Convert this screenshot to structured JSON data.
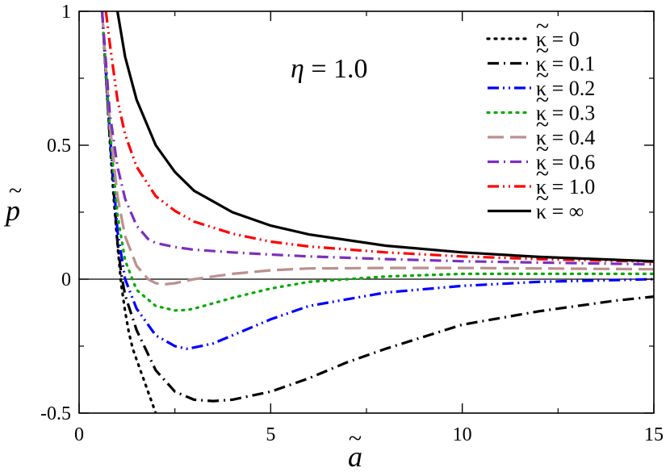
{
  "chart_data": {
    "type": "line",
    "title": "",
    "xlabel": "a",
    "ylabel": "p",
    "xlim": [
      0,
      15
    ],
    "ylim": [
      -0.5,
      1
    ],
    "xticks": [
      0,
      5,
      10,
      15
    ],
    "xtick_labels": [
      "0",
      "5",
      "10",
      "15"
    ],
    "yticks": [
      -0.5,
      0,
      0.5,
      1
    ],
    "ytick_labels": [
      "-0.5",
      "0",
      "0.5",
      "1"
    ],
    "annotation": {
      "symbol": "η",
      "text": " = 1.0"
    },
    "legend_position": "top-right",
    "series": [
      {
        "name": "κ = 0",
        "color": "#000000",
        "dash": "dot",
        "x": [
          0.6,
          0.7,
          0.8,
          0.9,
          1.0,
          1.1,
          1.2,
          1.3,
          1.4,
          1.5,
          1.6,
          1.7,
          1.8,
          1.9,
          2.0,
          2.1
        ],
        "y": [
          1.0,
          0.76,
          0.52,
          0.31,
          0.13,
          -0.02,
          -0.12,
          -0.2,
          -0.26,
          -0.3,
          -0.34,
          -0.38,
          -0.42,
          -0.46,
          -0.5,
          -0.53
        ]
      },
      {
        "name": "κ = 0.1",
        "color": "#000000",
        "dash": "dashdot",
        "x": [
          0.6,
          0.8,
          1.0,
          1.1,
          1.2,
          1.5,
          2.0,
          2.5,
          3.0,
          3.5,
          4.0,
          5.0,
          6.0,
          7.0,
          8.0,
          10.0,
          12.0,
          14.0,
          15.0
        ],
        "y": [
          1.0,
          0.53,
          0.14,
          0.02,
          -0.06,
          -0.19,
          -0.34,
          -0.42,
          -0.45,
          -0.455,
          -0.45,
          -0.42,
          -0.37,
          -0.31,
          -0.26,
          -0.17,
          -0.12,
          -0.08,
          -0.065
        ]
      },
      {
        "name": "κ = 0.2",
        "color": "#0000ff",
        "dash": "dashdotdot",
        "x": [
          0.6,
          0.8,
          1.0,
          1.2,
          1.5,
          2.0,
          2.5,
          2.8,
          3.0,
          3.5,
          4.0,
          5.0,
          6.0,
          8.0,
          10.0,
          12.0,
          15.0
        ],
        "y": [
          1.0,
          0.55,
          0.18,
          0.0,
          -0.11,
          -0.21,
          -0.25,
          -0.26,
          -0.255,
          -0.24,
          -0.21,
          -0.15,
          -0.1,
          -0.05,
          -0.025,
          -0.01,
          0.0
        ]
      },
      {
        "name": "κ = 0.3",
        "color": "#00aa00",
        "dash": "dot",
        "x": [
          0.6,
          0.8,
          1.0,
          1.2,
          1.5,
          2.0,
          2.5,
          2.8,
          3.0,
          3.5,
          4.0,
          5.0,
          6.0,
          8.0,
          10.0,
          12.0,
          15.0
        ],
        "y": [
          1.0,
          0.56,
          0.24,
          0.07,
          -0.04,
          -0.1,
          -0.117,
          -0.115,
          -0.11,
          -0.09,
          -0.07,
          -0.035,
          -0.01,
          0.01,
          0.02,
          0.02,
          0.02
        ]
      },
      {
        "name": "κ = 0.4",
        "color": "#bc8f8f",
        "dash": "longdash",
        "x": [
          0.6,
          0.8,
          1.0,
          1.2,
          1.5,
          1.8,
          2.0,
          2.2,
          2.5,
          3.0,
          4.0,
          5.0,
          6.0,
          8.0,
          10.0,
          12.0,
          15.0
        ],
        "y": [
          1.0,
          0.58,
          0.31,
          0.16,
          0.05,
          0.0,
          -0.015,
          -0.02,
          -0.015,
          0.0,
          0.02,
          0.033,
          0.04,
          0.042,
          0.042,
          0.04,
          0.037
        ]
      },
      {
        "name": "κ = 0.6",
        "color": "#7b2fbf",
        "dash": "dashdot",
        "x": [
          0.6,
          0.8,
          1.0,
          1.2,
          1.5,
          1.8,
          2.0,
          2.5,
          3.0,
          4.0,
          5.0,
          6.0,
          8.0,
          10.0,
          12.0,
          15.0
        ],
        "y": [
          1.0,
          0.62,
          0.42,
          0.3,
          0.2,
          0.15,
          0.135,
          0.12,
          0.11,
          0.1,
          0.092,
          0.085,
          0.075,
          0.067,
          0.062,
          0.055
        ]
      },
      {
        "name": "κ = 1.0",
        "color": "#ff0000",
        "dash": "dashdotdot",
        "x": [
          0.7,
          0.8,
          1.0,
          1.2,
          1.5,
          2.0,
          2.5,
          3.0,
          4.0,
          5.0,
          6.0,
          8.0,
          10.0,
          12.0,
          15.0
        ],
        "y": [
          1.0,
          0.88,
          0.67,
          0.54,
          0.42,
          0.31,
          0.255,
          0.215,
          0.17,
          0.14,
          0.122,
          0.1,
          0.085,
          0.075,
          0.065
        ]
      },
      {
        "name": "κ = ∞",
        "color": "#000000",
        "dash": "solid",
        "x": [
          1.0,
          1.2,
          1.5,
          2.0,
          2.5,
          3.0,
          4.0,
          5.0,
          6.0,
          8.0,
          10.0,
          12.0,
          15.0
        ],
        "y": [
          1.0,
          0.83,
          0.67,
          0.5,
          0.4,
          0.33,
          0.25,
          0.2,
          0.167,
          0.125,
          0.1,
          0.083,
          0.067
        ]
      }
    ]
  }
}
